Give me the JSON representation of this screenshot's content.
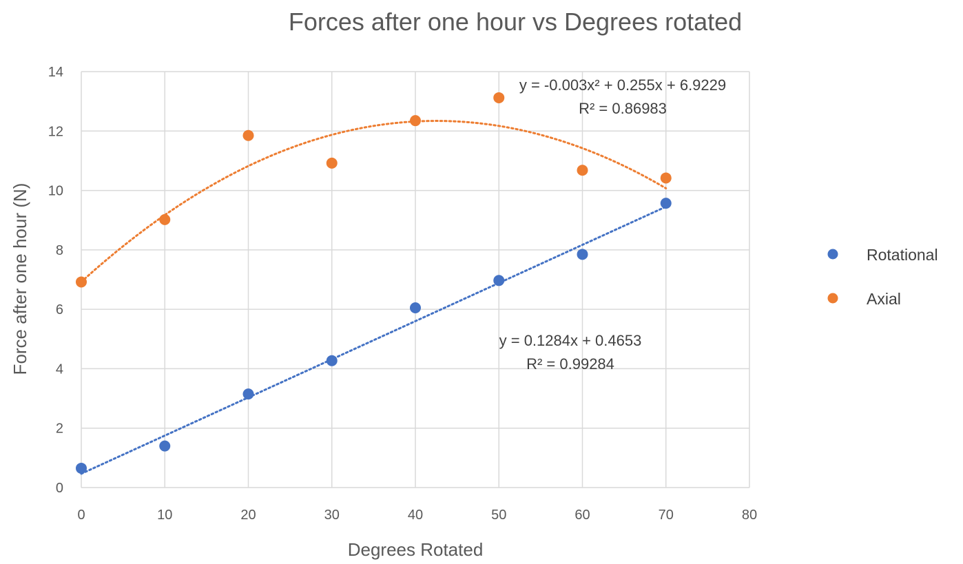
{
  "chart_data": {
    "type": "scatter",
    "title": "Forces after one hour vs Degrees rotated",
    "xlabel": "Degrees Rotated",
    "ylabel": "Force after one hour (N)",
    "xlim": [
      0,
      80
    ],
    "ylim": [
      0,
      14
    ],
    "xticks": [
      0,
      10,
      20,
      30,
      40,
      50,
      60,
      70,
      80
    ],
    "yticks": [
      0,
      2,
      4,
      6,
      8,
      10,
      12,
      14
    ],
    "grid": true,
    "legend": "right",
    "series": [
      {
        "name": "Rotational",
        "color": "#4472c4",
        "x": [
          0,
          10,
          20,
          30,
          40,
          50,
          60,
          70
        ],
        "y": [
          0.65,
          1.4,
          3.15,
          4.27,
          6.05,
          6.97,
          7.85,
          9.57
        ],
        "trendline": {
          "type": "linear",
          "coefficients": [
            0.1284,
            0.4653
          ],
          "equation": "y = 0.1284x + 0.4653",
          "r2": "R² = 0.99284"
        }
      },
      {
        "name": "Axial",
        "color": "#ed7d31",
        "x": [
          0,
          10,
          20,
          30,
          40,
          50,
          60,
          70
        ],
        "y": [
          6.92,
          9.02,
          11.85,
          10.92,
          12.35,
          13.12,
          10.68,
          10.42
        ],
        "trendline": {
          "type": "polynomial",
          "coefficients": [
            -0.003,
            0.255,
            6.9229
          ],
          "equation": "y = -0.003x² + 0.255x + 6.9229",
          "r2": "R² = 0.86983"
        }
      }
    ]
  }
}
